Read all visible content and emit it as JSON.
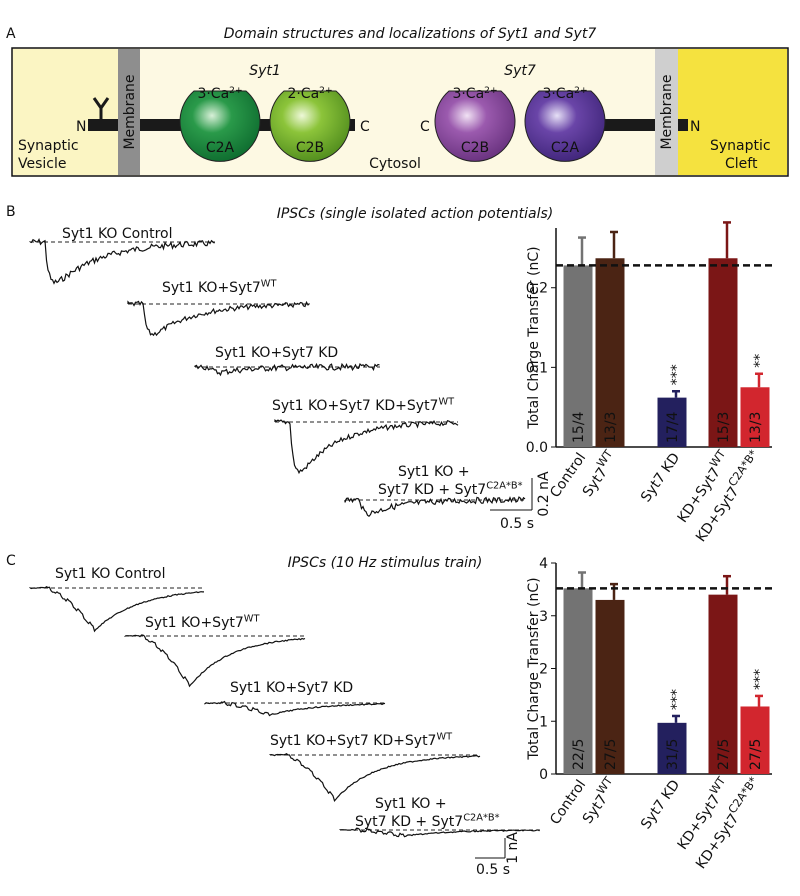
{
  "panel_a": {
    "letter": "A",
    "title": "Domain structures and localizations of Syt1 and Syt7",
    "syt1": "Syt1",
    "syt7": "Syt7",
    "ca_labels": [
      [
        {
          "t": "3·Ca"
        },
        {
          "sup": "2+"
        }
      ],
      [
        {
          "t": "2·Ca"
        },
        {
          "sup": "2+"
        }
      ],
      [
        {
          "t": "3·Ca"
        },
        {
          "sup": "2+"
        }
      ],
      [
        {
          "t": "3·Ca"
        },
        {
          "sup": "2+"
        }
      ]
    ],
    "domains": [
      "C2A",
      "C2B",
      "C2B",
      "C2A"
    ],
    "termini": [
      "N",
      "C",
      "C",
      "N"
    ],
    "membrane": "Membrane",
    "vesicle": [
      "Synaptic",
      "Vesicle"
    ],
    "cytosol": "Cytosol",
    "cleft": [
      "Synaptic",
      "Cleft"
    ]
  },
  "panel_b": {
    "letter": "B",
    "title": "IPSCs (single isolated action potentials)",
    "traces": [
      [
        [
          {
            "t": "Syt1 KO Control"
          }
        ]
      ],
      [
        [
          {
            "t": "Syt1 KO+Syt7"
          },
          {
            "sup": "WT"
          }
        ]
      ],
      [
        [
          {
            "t": "Syt1 KO+Syt7 KD"
          }
        ]
      ],
      [
        [
          {
            "t": "Syt1 KO+Syt7 KD+Syt7"
          },
          {
            "sup": "WT"
          }
        ]
      ],
      [
        [
          {
            "t": "Syt1 KO +"
          }
        ],
        [
          {
            "t": "Syt7 KD + Syt7"
          },
          {
            "sup": "C2A*B*"
          }
        ]
      ]
    ],
    "scale_y": "0.2 nA",
    "scale_x": "0.5 s"
  },
  "panel_c": {
    "letter": "C",
    "title": "IPSCs (10 Hz stimulus train)",
    "traces": [
      [
        [
          {
            "t": "Syt1 KO Control"
          }
        ]
      ],
      [
        [
          {
            "t": "Syt1 KO+Syt7"
          },
          {
            "sup": "WT"
          }
        ]
      ],
      [
        [
          {
            "t": "Syt1 KO+Syt7 KD"
          }
        ]
      ],
      [
        [
          {
            "t": "Syt1 KO+Syt7 KD+Syt7"
          },
          {
            "sup": "WT"
          }
        ]
      ],
      [
        [
          {
            "t": "Syt1 KO +"
          }
        ],
        [
          {
            "t": "Syt7 KD + Syt7"
          },
          {
            "sup": "C2A*B*"
          }
        ]
      ]
    ],
    "scale_y": "1 nA",
    "scale_x": "0.5 s"
  },
  "chart_data": [
    {
      "type": "bar",
      "ylabel": "Total Charge Transfer (nC)",
      "categories": [
        [
          {
            "t": "Control"
          }
        ],
        [
          {
            "t": "Syt7"
          },
          {
            "sup": "WT"
          }
        ],
        [
          {
            "t": "Syt7 KD"
          }
        ],
        [
          {
            "t": "KD+Syt7"
          },
          {
            "sup": "WT"
          }
        ],
        [
          {
            "t": "KD+Syt7"
          },
          {
            "sup": "C2A*B*"
          }
        ]
      ],
      "values": [
        0.228,
        0.237,
        0.062,
        0.237,
        0.075
      ],
      "errors": [
        0.035,
        0.033,
        0.008,
        0.045,
        0.017
      ],
      "bar_labels": [
        "15/4",
        "13/3",
        "17/4",
        "15/3",
        "13/3"
      ],
      "stars": [
        null,
        null,
        "***",
        null,
        "**"
      ],
      "colors": [
        "#737373",
        "#4b2414",
        "#23205e",
        "#7b1616",
        "#d2262e"
      ],
      "ylim": [
        0,
        0.275
      ],
      "yticks": [
        {
          "value": 0,
          "label": "0.0"
        },
        0.1,
        0.2
      ],
      "reference_line": 0.228
    },
    {
      "type": "bar",
      "ylabel": "Total Charge Transfer (nC)",
      "categories": [
        [
          {
            "t": "Control"
          }
        ],
        [
          {
            "t": "Syt7"
          },
          {
            "sup": "WT"
          }
        ],
        [
          {
            "t": "Syt7 KD"
          }
        ],
        [
          {
            "t": "KD+Syt7"
          },
          {
            "sup": "WT"
          }
        ],
        [
          {
            "t": "KD+Syt7"
          },
          {
            "sup": "C2A*B*"
          }
        ]
      ],
      "values": [
        3.52,
        3.3,
        0.97,
        3.4,
        1.28
      ],
      "errors": [
        0.3,
        0.3,
        0.13,
        0.35,
        0.2
      ],
      "bar_labels": [
        "22/5",
        "27/5",
        "31/5",
        "27/5",
        "27/5"
      ],
      "stars": [
        null,
        null,
        "***",
        null,
        "***"
      ],
      "colors": [
        "#737373",
        "#4b2414",
        "#23205e",
        "#7b1616",
        "#d2262e"
      ],
      "ylim": [
        0,
        4
      ],
      "yticks": [
        0,
        1,
        2,
        3,
        4
      ],
      "reference_line": 3.52
    }
  ]
}
